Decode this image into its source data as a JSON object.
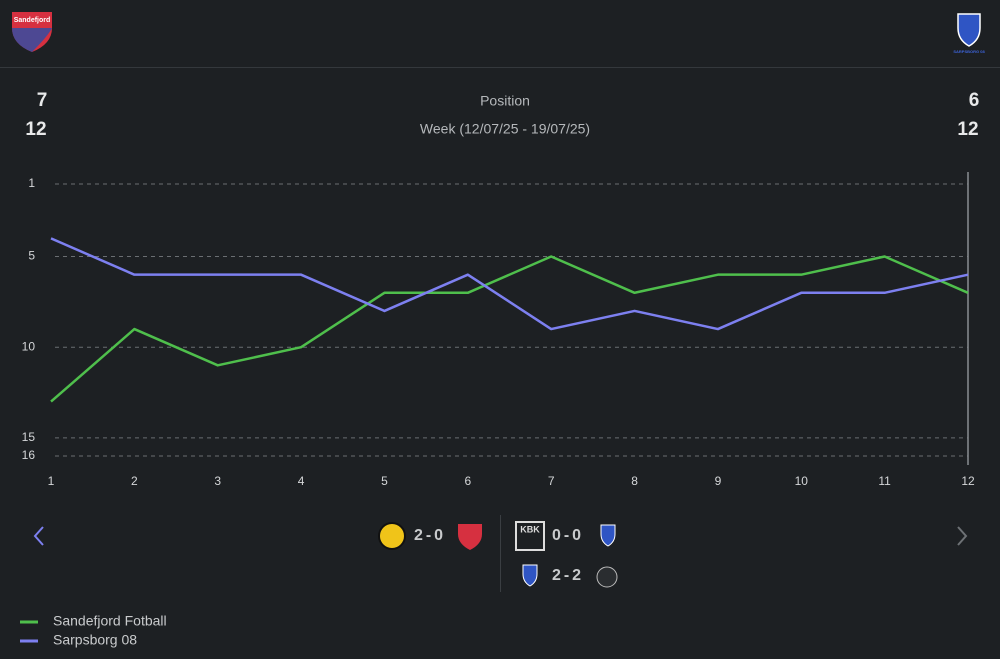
{
  "header": {
    "home": [
      "7",
      "12"
    ],
    "away": [
      "6",
      "12"
    ],
    "home_badge": "Sandefjord",
    "away_badge": "SARPSBORG 08"
  },
  "chart_data": {
    "type": "line",
    "title": "Position",
    "subtitle": "Week (12/07/25 - 19/07/25)",
    "x": [
      1,
      2,
      3,
      4,
      5,
      6,
      7,
      8,
      9,
      10,
      11,
      12
    ],
    "series": [
      {
        "name": "Sandefjord Fotball",
        "color": "#4fbf4c",
        "values": [
          13,
          9,
          11,
          10,
          7,
          7,
          5,
          7,
          6,
          6,
          5,
          7
        ]
      },
      {
        "name": "Sarpsborg 08",
        "color": "#7d80f0",
        "values": [
          4,
          6,
          6,
          6,
          8,
          6,
          9,
          8,
          9,
          7,
          7,
          6
        ]
      }
    ],
    "xlim": [
      1,
      12
    ],
    "xticks": [
      1,
      2,
      3,
      4,
      5,
      6,
      7,
      8,
      9,
      10,
      11,
      12
    ],
    "ylim": [
      16,
      1
    ],
    "yticks": [
      1,
      5,
      10,
      15,
      16
    ],
    "y_inverted": true,
    "grid": true,
    "selected_x": 12
  },
  "matches": [
    {
      "score": "2-0"
    },
    {
      "score": "0-0",
      "home_badge": "KBK"
    },
    {
      "score": "2-2"
    }
  ]
}
